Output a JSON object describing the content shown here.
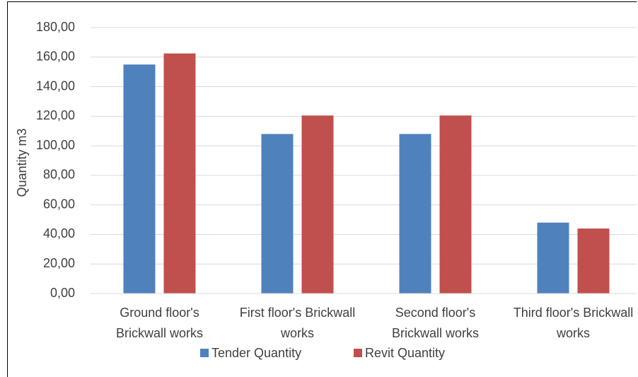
{
  "chart_data": {
    "type": "bar",
    "y_label": "Quantity m3",
    "categories": [
      "Ground floor's Brickwall works",
      "First floor's Brickwall works",
      "Second floor's Brickwall works",
      "Third floor's Brickwall works"
    ],
    "series": [
      {
        "name": "Tender Quantity",
        "color": "#4f81bd",
        "values": [
          155,
          108,
          108,
          48
        ]
      },
      {
        "name": "Revit Quantity",
        "color": "#c0504d",
        "values": [
          162.5,
          120.5,
          120.5,
          44
        ]
      }
    ],
    "ylim": [
      0,
      180
    ],
    "yticks": [
      {
        "value": 0,
        "label": "0,00"
      },
      {
        "value": 20,
        "label": "20,00"
      },
      {
        "value": 40,
        "label": "40,00"
      },
      {
        "value": 60,
        "label": "60,00"
      },
      {
        "value": 80,
        "label": "80,00"
      },
      {
        "value": 100,
        "label": "100,00"
      },
      {
        "value": 120,
        "label": "120,00"
      },
      {
        "value": 140,
        "label": "140,00"
      },
      {
        "value": 160,
        "label": "160,00"
      },
      {
        "value": 180,
        "label": "180,00"
      }
    ],
    "grid": true,
    "legend": "bottom"
  }
}
